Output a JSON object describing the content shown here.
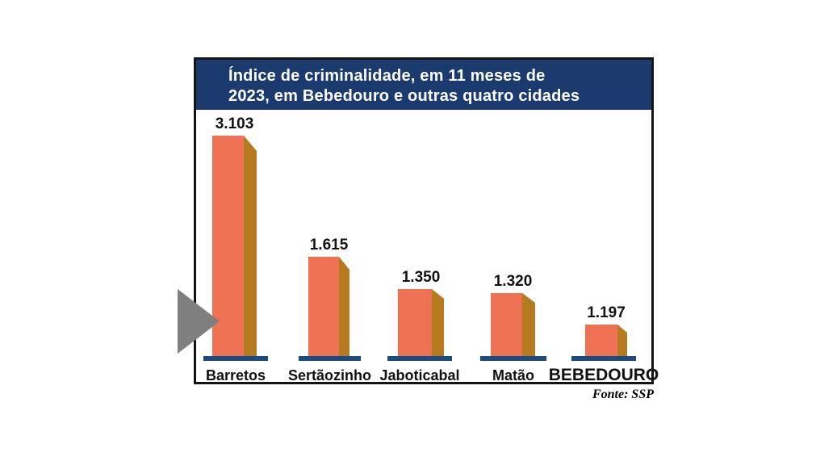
{
  "colors": {
    "page_background": "#FFFFFF",
    "banner_background": "#1B3A6E",
    "banner_text": "#FFFFFF",
    "bar_front": "#EE7253",
    "bar_side": "#B57B1E",
    "pedestal": "#1A4B82",
    "border": "#141414",
    "label_text": "#111111",
    "arrow": "#7F7F7F"
  },
  "infographic": {
    "title_line1": "Índice de criminalidade, em 11 meses de",
    "title_line2": "2023, em Bebedouro e outras quatro cidades",
    "source": "Fonte: SSP"
  },
  "chart_data": {
    "type": "bar",
    "orientation": "vertical",
    "title": "Índice de criminalidade, em 11 meses de 2023, em Bebedouro e outras quatro cidades",
    "categories": [
      "Barretos",
      "Sertãozinho",
      "Jaboticabal",
      "Matão",
      "BEBEDOURO"
    ],
    "values": [
      3103,
      1615,
      1350,
      1320,
      1197
    ],
    "value_labels": [
      "3.103",
      "1.615",
      "1.350",
      "1.320",
      "1.197"
    ],
    "highlighted_category": "BEBEDOURO",
    "source": "Fonte: SSP",
    "legend": false,
    "gridlines": false,
    "axes_shown": false
  }
}
